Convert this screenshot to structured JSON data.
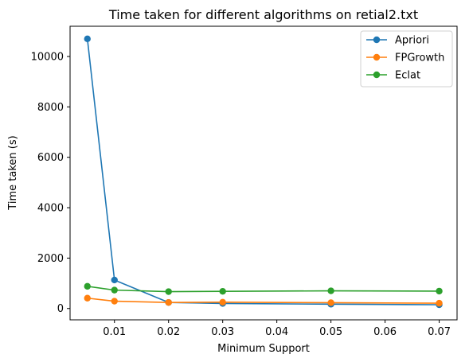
{
  "chart_data": {
    "type": "line",
    "title": "Time taken for different algorithms on retial2.txt",
    "xlabel": "Minimum Support",
    "ylabel": "Time taken (s)",
    "x": [
      0.005,
      0.01,
      0.02,
      0.03,
      0.05,
      0.07
    ],
    "xlim": [
      0.0018,
      0.0733
    ],
    "ylim": [
      -450,
      11200
    ],
    "xticks": [
      0.01,
      0.02,
      0.03,
      0.04,
      0.05,
      0.06,
      0.07
    ],
    "xtick_labels": [
      "0.01",
      "0.02",
      "0.03",
      "0.04",
      "0.05",
      "0.06",
      "0.07"
    ],
    "yticks": [
      0,
      2000,
      4000,
      6000,
      8000,
      10000
    ],
    "ytick_labels": [
      "0",
      "2000",
      "4000",
      "6000",
      "8000",
      "10000"
    ],
    "grid": false,
    "legend_position": "top-right",
    "series": [
      {
        "name": "Apriori",
        "color": "#1f77b4",
        "values": [
          10700,
          1130,
          240,
          200,
          170,
          150
        ]
      },
      {
        "name": "FPGrowth",
        "color": "#ff7f0e",
        "values": [
          410,
          290,
          240,
          250,
          230,
          210
        ]
      },
      {
        "name": "Eclat",
        "color": "#2ca02c",
        "values": [
          880,
          730,
          670,
          680,
          700,
          690
        ]
      }
    ]
  }
}
